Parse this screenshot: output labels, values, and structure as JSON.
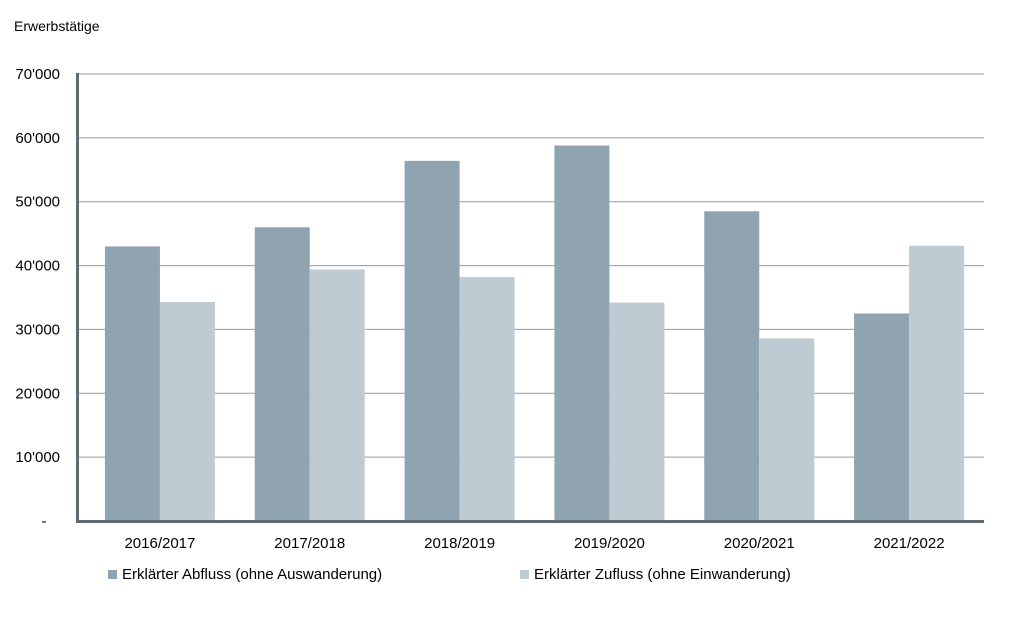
{
  "chart_data": {
    "type": "bar",
    "ylabel": "Erwerbstätige",
    "categories": [
      "2016/2017",
      "2017/2018",
      "2018/2019",
      "2019/2020",
      "2020/2021",
      "2021/2022"
    ],
    "series": [
      {
        "name": "Erklärter Abfluss (ohne Auswanderung)",
        "color": "#8fa3b0",
        "values": [
          43000,
          46000,
          56400,
          58800,
          48500,
          32500
        ]
      },
      {
        "name": "Erklärter Zufluss (ohne Einwanderung)",
        "color": "#bfcbd2",
        "values": [
          34300,
          39400,
          38200,
          34200,
          28600,
          43100
        ]
      }
    ],
    "ylim": [
      0,
      70000
    ],
    "yticks": [
      {
        "value": 0,
        "label": "-"
      },
      {
        "value": 10000,
        "label": "10'000"
      },
      {
        "value": 20000,
        "label": "20'000"
      },
      {
        "value": 30000,
        "label": "30'000"
      },
      {
        "value": 40000,
        "label": "40'000"
      },
      {
        "value": 50000,
        "label": "50'000"
      },
      {
        "value": 60000,
        "label": "60'000"
      },
      {
        "value": 70000,
        "label": "70'000"
      }
    ],
    "grid": true,
    "legend_position": "bottom-left",
    "colors": {
      "axis": "#5f6b73",
      "grid": "#9a9a9a"
    }
  }
}
